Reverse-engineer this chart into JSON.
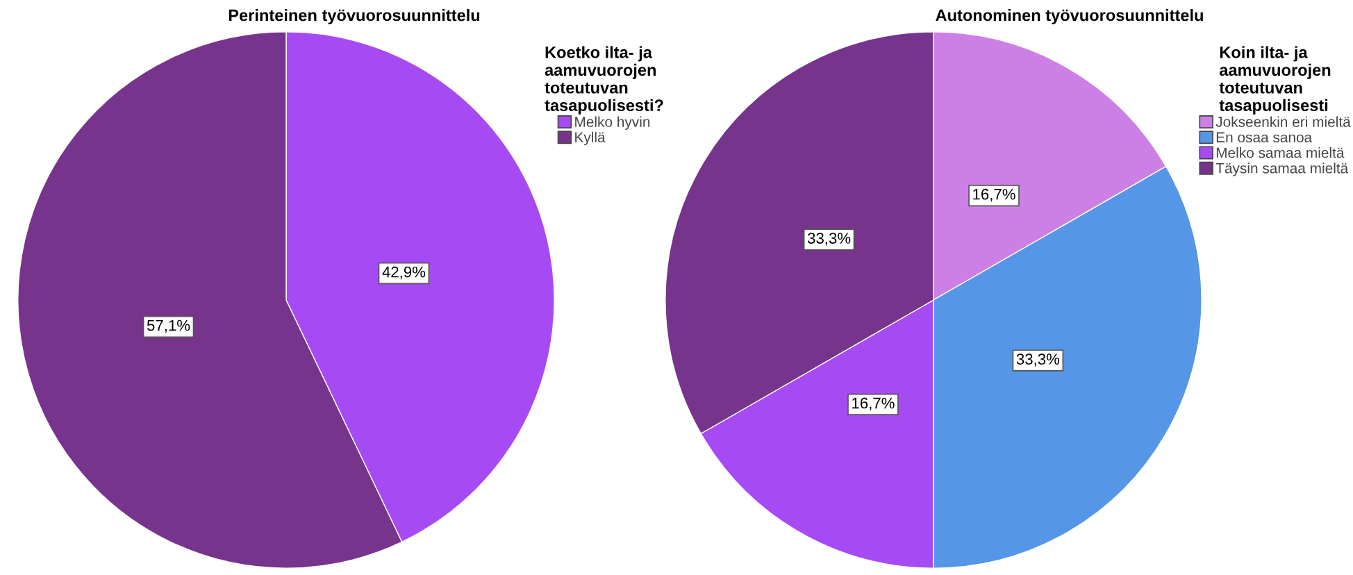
{
  "chart_data": [
    {
      "type": "pie",
      "title": "Perinteinen työvuorosuunnittelu",
      "legend_title": "Koetko ilta- ja\naamuvuorojen\ntoteutuvan\ntasapuolisesti?",
      "legend": "right",
      "categories": [
        "Melko hyvin",
        "Kyllä"
      ],
      "values": [
        42.9,
        57.1
      ],
      "colors": [
        "#a64af4",
        "#76348c"
      ],
      "value_labels": [
        "42,9%",
        "57,1%"
      ]
    },
    {
      "type": "pie",
      "title": "Autonominen työvuorosuunnittelu",
      "legend_title": "Koin ilta- ja\naamuvuorojen\ntoteutuvan\ntasapuolisesti",
      "legend": "right",
      "categories": [
        "Jokseenkin eri mieltä",
        "En osaa sanoa",
        "Melko samaa mieltä",
        "Täysin samaa mieltä"
      ],
      "values": [
        16.7,
        33.3,
        16.7,
        33.3
      ],
      "colors": [
        "#cc80e6",
        "#5596e6",
        "#a64af4",
        "#76348c"
      ],
      "value_labels": [
        "16,7%",
        "33,3%",
        "16,7%",
        "33,3%"
      ]
    }
  ]
}
